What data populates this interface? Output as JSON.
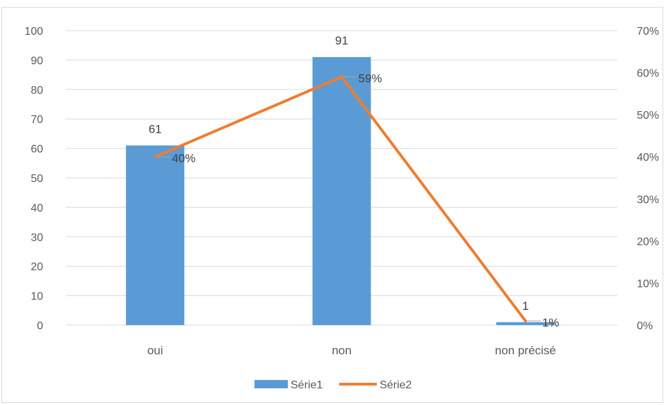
{
  "chart_data": {
    "type": "bar",
    "categories": [
      "oui",
      "non",
      "non précisé"
    ],
    "series": [
      {
        "name": "Série1",
        "chart_type": "bar",
        "axis": "left",
        "values": [
          61,
          91,
          1
        ],
        "data_labels": [
          "61",
          "91",
          "1"
        ],
        "color": "#5b9bd5"
      },
      {
        "name": "Série2",
        "chart_type": "line",
        "axis": "right",
        "values": [
          0.4,
          0.59,
          0.01
        ],
        "data_labels": [
          "40%",
          "59%",
          "1%"
        ],
        "color": "#ed7d31"
      }
    ],
    "y_left": {
      "ylim": [
        0,
        100
      ],
      "ticks": [
        "0",
        "10",
        "20",
        "30",
        "40",
        "50",
        "60",
        "70",
        "80",
        "90",
        "100"
      ]
    },
    "y_right": {
      "ylim": [
        0,
        0.7
      ],
      "ticks": [
        "0%",
        "10%",
        "20%",
        "30%",
        "40%",
        "50%",
        "60%",
        "70%"
      ]
    },
    "grid": true,
    "legend_position": "bottom",
    "title": "",
    "xlabel": "",
    "ylabel": ""
  }
}
